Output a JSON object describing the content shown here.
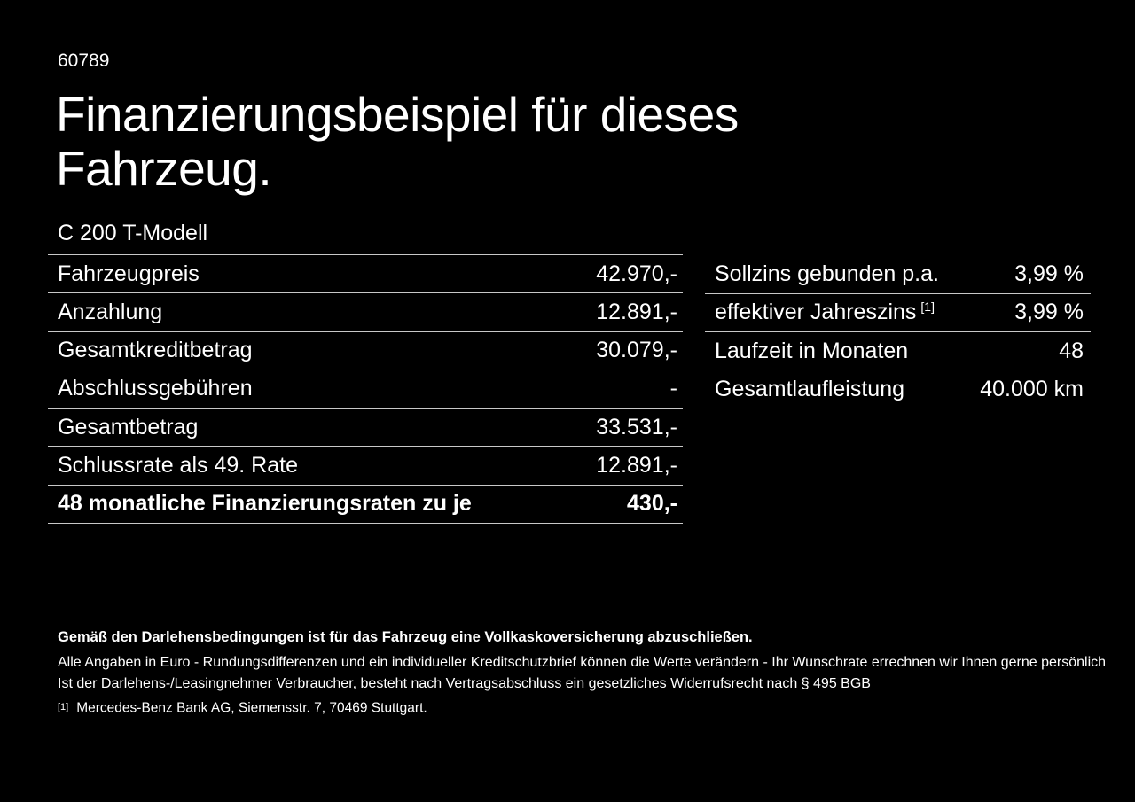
{
  "colors": {
    "background": "#000000",
    "text": "#ffffff",
    "divider": "#c8c8c8"
  },
  "header": {
    "doc_number": "60789",
    "title_lines": [
      "Finanzierungsbeispiel für dieses",
      "Fahrzeug."
    ],
    "model": "C 200 T-Modell"
  },
  "finance_table": {
    "rows": [
      {
        "label": "Fahrzeugpreis",
        "value": "42.970,-"
      },
      {
        "label": "Anzahlung",
        "value": "12.891,-"
      },
      {
        "label": "Gesamtkreditbetrag",
        "value": "30.079,-"
      },
      {
        "label": "Abschlussgebühren",
        "value": "-"
      },
      {
        "label": "Gesamtbetrag",
        "value": "33.531,-"
      },
      {
        "label": "Schlussrate als 49. Rate",
        "value": "12.891,-"
      },
      {
        "label": "48 monatliche Finanzierungsraten zu je",
        "value": "430,-"
      }
    ]
  },
  "conditions_table": {
    "rows": [
      {
        "label": "Sollzins gebunden p.a.",
        "value": "3,99 %"
      },
      {
        "label": "effektiver Jahreszins",
        "footnote_ref": "[1]",
        "value": "3,99 %"
      },
      {
        "label": "Laufzeit in Monaten",
        "value": "48"
      },
      {
        "label": "Gesamtlaufleistung",
        "value": "40.000 km"
      }
    ]
  },
  "footer": {
    "insurance_note": "Gemäß den Darlehensbedingungen ist für das Fahrzeug eine Vollkaskoversicherung abzuschließen.",
    "note_rounding": "Alle Angaben in Euro - Rundungsdifferenzen und ein individueller Kreditschutzbrief können die Werte verändern - Ihr Wunschrate errechnen wir Ihnen gerne persönlich",
    "note_withdrawal": "Ist der Darlehens-/Leasingnehmer Verbraucher, besteht nach Vertragsabschluss ein gesetzliches Widerrufsrecht nach § 495 BGB",
    "footnote_marker": "[1]",
    "footnote_text": "Mercedes-Benz Bank AG, Siemensstr. 7, 70469 Stuttgart."
  }
}
